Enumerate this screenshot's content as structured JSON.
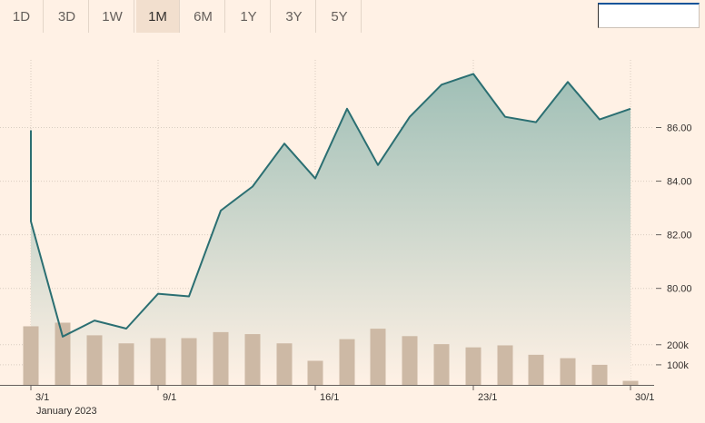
{
  "range_buttons": [
    {
      "label": "1D",
      "active": false
    },
    {
      "label": "3D",
      "active": false
    },
    {
      "label": "1W",
      "active": false
    },
    {
      "label": "1M",
      "active": true
    },
    {
      "label": "6M",
      "active": false
    },
    {
      "label": "1Y",
      "active": false
    },
    {
      "label": "3Y",
      "active": false
    },
    {
      "label": "5Y",
      "active": false
    }
  ],
  "search": {
    "value": "",
    "placeholder": ""
  },
  "colors": {
    "line": "#2b6f72",
    "area_top": "#9fbfb6",
    "area_bottom": "#fff1e5",
    "volume": "#cdb9a5",
    "grid": "#d9ccc0",
    "background": "#fff1e5"
  },
  "chart_data": [
    {
      "type": "line",
      "title": "",
      "x": [
        "2023-01-03 open",
        "2023-01-03",
        "2023-01-04",
        "2023-01-05",
        "2023-01-06",
        "2023-01-09",
        "2023-01-10",
        "2023-01-11",
        "2023-01-12",
        "2023-01-13",
        "2023-01-16",
        "2023-01-17",
        "2023-01-18",
        "2023-01-19",
        "2023-01-20",
        "2023-01-23",
        "2023-01-24",
        "2023-01-25",
        "2023-01-26",
        "2023-01-27",
        "2023-01-30"
      ],
      "values": [
        85.9,
        82.5,
        78.2,
        78.8,
        78.5,
        79.8,
        79.7,
        82.9,
        83.8,
        85.4,
        84.1,
        86.7,
        84.6,
        86.4,
        87.6,
        88.0,
        86.4,
        86.2,
        87.7,
        86.3,
        86.7
      ],
      "ylim": [
        76.4,
        89.2
      ],
      "y_ticks": [
        80.0,
        82.0,
        84.0,
        86.0
      ],
      "y_tick_labels": [
        "80.00",
        "82.00",
        "84.00",
        "86.00"
      ],
      "x_tick_labels": [
        "3/1",
        "9/1",
        "16/1",
        "23/1",
        "30/1"
      ],
      "x_sublabel": "January 2023",
      "grid": true
    },
    {
      "type": "bar",
      "title": "",
      "x": [
        "2023-01-03",
        "2023-01-04",
        "2023-01-05",
        "2023-01-06",
        "2023-01-09",
        "2023-01-10",
        "2023-01-11",
        "2023-01-12",
        "2023-01-13",
        "2023-01-16",
        "2023-01-17",
        "2023-01-18",
        "2023-01-19",
        "2023-01-20",
        "2023-01-23",
        "2023-01-24",
        "2023-01-25",
        "2023-01-26",
        "2023-01-27",
        "2023-01-30"
      ],
      "values": [
        292000,
        310000,
        247000,
        207000,
        233000,
        233000,
        263000,
        253000,
        207000,
        120000,
        228000,
        280000,
        243000,
        203000,
        187000,
        197000,
        150000,
        133000,
        100000,
        20000
      ],
      "ylim": [
        0,
        380000
      ],
      "y_ticks": [
        100000,
        200000
      ],
      "y_tick_labels": [
        "100k",
        "200k"
      ]
    }
  ]
}
